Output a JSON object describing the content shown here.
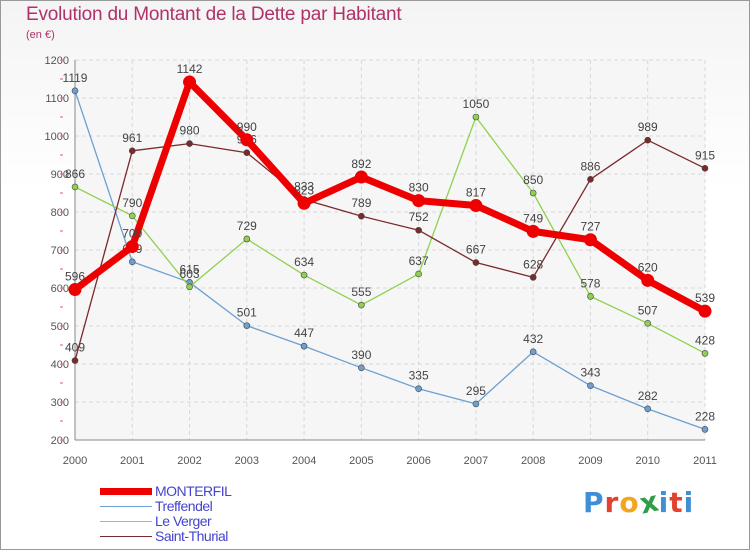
{
  "title": "Evolution du Montant de la Dette par Habitant",
  "subtitle": "(en €)",
  "watermark": "Proxiti",
  "watermark_colors": [
    "#3f8fd6",
    "#e3422f",
    "#f3a51d",
    "#2d9e47",
    "#3f8fd6",
    "#e3422f",
    "#3f8fd6"
  ],
  "chart_data": {
    "type": "line",
    "x": [
      "2000",
      "2001",
      "2002",
      "2003",
      "2004",
      "2005",
      "2006",
      "2007",
      "2008",
      "2009",
      "2010",
      "2011"
    ],
    "ylim": [
      200,
      1200
    ],
    "yticks": [
      200,
      300,
      400,
      500,
      600,
      700,
      800,
      900,
      1000,
      1100,
      1200
    ],
    "grid": true,
    "legend_position": "bottom-left",
    "series": [
      {
        "name": "Treffendel",
        "color": "#6d9fd1",
        "values": [
          1119,
          669,
          615,
          501,
          447,
          390,
          335,
          295,
          432,
          343,
          282,
          228
        ]
      },
      {
        "name": "Le Verger",
        "color": "#8fd14f",
        "values": [
          866,
          790,
          603,
          729,
          634,
          555,
          637,
          1050,
          850,
          578,
          507,
          428
        ]
      },
      {
        "name": "Saint-Thurial",
        "color": "#7a2a2a",
        "values": [
          409,
          961,
          980,
          956,
          833,
          789,
          752,
          667,
          628,
          886,
          989,
          915
        ]
      },
      {
        "name": "MONTERFIL",
        "color": "#ee0000",
        "values": [
          596,
          709,
          1142,
          990,
          823,
          892,
          830,
          817,
          749,
          727,
          620,
          539
        ]
      }
    ],
    "legend_order": [
      "MONTERFIL",
      "Treffendel",
      "Le Verger",
      "Saint-Thurial"
    ]
  }
}
